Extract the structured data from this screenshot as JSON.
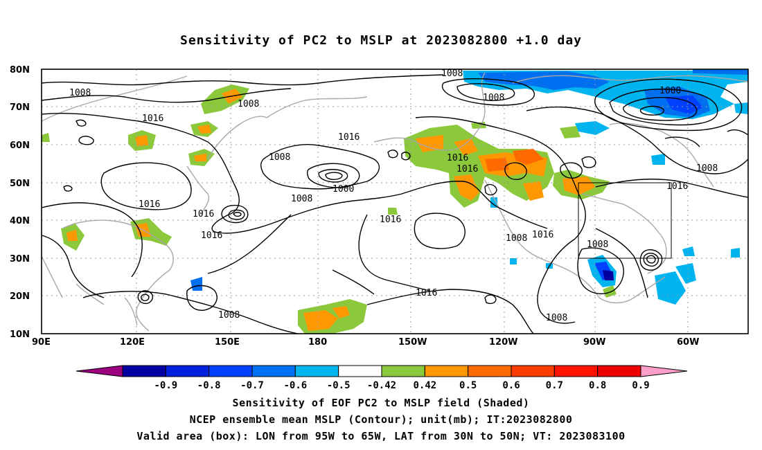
{
  "title": "Sensitivity of PC2 to MSLP at 2023082800 +1.0 day",
  "lat_ticks": [
    "80N",
    "70N",
    "60N",
    "50N",
    "40N",
    "30N",
    "20N",
    "10N"
  ],
  "lon_ticks": [
    "90E",
    "120E",
    "150E",
    "180",
    "150W",
    "120W",
    "90W",
    "60W"
  ],
  "contour_labels": [
    "1008",
    "1008",
    "1016",
    "1016",
    "1008",
    "1000",
    "1008",
    "1016",
    "1016",
    "1016",
    "1008",
    "1008",
    "1008",
    "1000",
    "1000",
    "1016",
    "1016",
    "1016",
    "1008",
    "1016",
    "1008",
    "1008",
    "1016",
    "1008",
    "1016"
  ],
  "colorbar": {
    "colors": [
      "#9b0080",
      "#0000a0",
      "#0020e0",
      "#0040ff",
      "#0070f0",
      "#00b4f0",
      "#ffffff",
      "#8cc83c",
      "#ff9800",
      "#ff6a00",
      "#ff3c00",
      "#ff1400",
      "#ee0000",
      "#ff9ec8"
    ],
    "labels": [
      "-0.9",
      "-0.8",
      "-0.7",
      "-0.6",
      "-0.5",
      "-0.42",
      "0.42",
      "0.5",
      "0.6",
      "0.7",
      "0.8",
      "0.9"
    ]
  },
  "captions": [
    "Sensitivity of EOF PC2 to MSLP field (Shaded)",
    "NCEP ensemble mean MSLP (Contour); unit(mb); IT:2023082800",
    "Valid area (box): LON from 95W to 65W, LAT from 30N to 50N; VT: 2023083100"
  ]
}
